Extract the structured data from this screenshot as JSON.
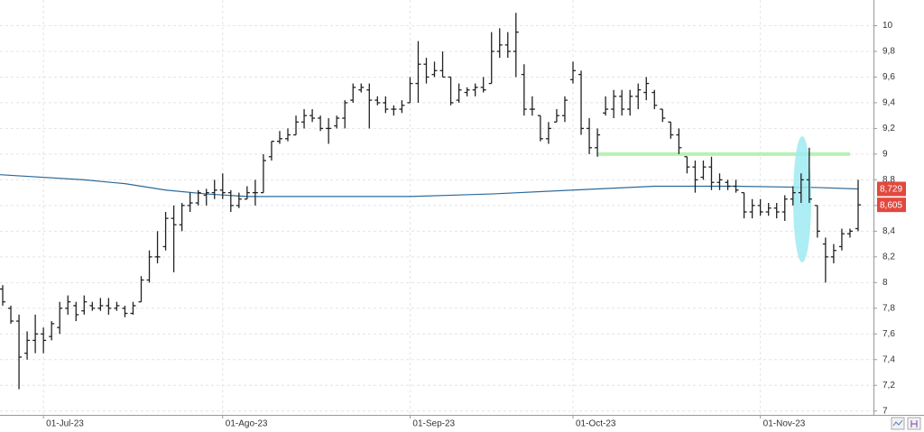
{
  "chart_data": {
    "type": "ohlc",
    "categories": [
      null,
      null,
      null,
      null,
      null,
      "01-Jul-23",
      null,
      null,
      null,
      null,
      null,
      null,
      null,
      null,
      null,
      null,
      null,
      null,
      null,
      null,
      null,
      null,
      null,
      null,
      null,
      null,
      null,
      "01-Ago-23",
      null,
      null,
      null,
      null,
      null,
      null,
      null,
      null,
      null,
      null,
      null,
      null,
      null,
      null,
      null,
      null,
      null,
      null,
      null,
      null,
      null,
      null,
      "01-Sep-23",
      null,
      null,
      null,
      null,
      null,
      null,
      null,
      null,
      null,
      null,
      null,
      null,
      null,
      null,
      null,
      null,
      null,
      null,
      null,
      "01-Oct-23",
      null,
      null,
      null,
      null,
      null,
      null,
      null,
      null,
      null,
      null,
      null,
      null,
      null,
      null,
      null,
      null,
      null,
      null,
      null,
      null,
      null,
      null,
      "01-Nov-23",
      null,
      null,
      null,
      null,
      null,
      null,
      null,
      null,
      null,
      null,
      null,
      null
    ],
    "open": [
      7.95,
      7.8,
      7.7,
      7.45,
      7.55,
      7.6,
      7.58,
      7.65,
      7.8,
      7.82,
      7.78,
      7.82,
      7.8,
      7.82,
      7.8,
      7.8,
      7.76,
      7.85,
      8.02,
      8.2,
      8.28,
      8.5,
      8.45,
      8.6,
      8.62,
      8.68,
      8.7,
      8.72,
      8.7,
      8.6,
      8.65,
      8.7,
      8.7,
      8.98,
      9.1,
      9.12,
      9.15,
      9.25,
      9.3,
      9.28,
      9.2,
      9.22,
      9.28,
      9.42,
      9.5,
      9.5,
      9.42,
      9.4,
      9.35,
      9.35,
      9.4,
      9.55,
      9.7,
      9.62,
      9.65,
      9.6,
      9.42,
      9.48,
      9.5,
      9.52,
      9.55,
      9.8,
      9.85,
      9.8,
      9.62,
      9.35,
      9.3,
      9.12,
      9.25,
      9.3,
      9.58,
      9.62,
      9.2,
      9.05,
      9.32,
      9.35,
      9.45,
      9.35,
      9.45,
      9.48,
      9.48,
      9.35,
      9.25,
      9.15,
      8.98,
      8.9,
      8.82,
      8.9,
      8.78,
      8.78,
      8.75,
      8.7,
      8.55,
      8.6,
      8.55,
      8.58,
      8.55,
      8.65,
      8.7,
      8.8,
      8.6,
      8.3,
      8.2,
      8.28,
      8.38,
      8.42
    ],
    "high": [
      7.98,
      7.82,
      7.75,
      7.62,
      7.75,
      7.65,
      7.7,
      7.85,
      7.9,
      7.85,
      7.9,
      7.85,
      7.88,
      7.88,
      7.85,
      7.82,
      7.85,
      8.05,
      8.25,
      8.4,
      8.55,
      8.6,
      8.62,
      8.7,
      8.72,
      8.73,
      8.8,
      8.85,
      8.72,
      8.7,
      8.75,
      8.8,
      9.0,
      9.1,
      9.18,
      9.2,
      9.3,
      9.35,
      9.35,
      9.3,
      9.28,
      9.3,
      9.42,
      9.55,
      9.55,
      9.55,
      9.45,
      9.45,
      9.38,
      9.42,
      9.6,
      9.88,
      9.75,
      9.72,
      9.8,
      9.6,
      9.55,
      9.52,
      9.55,
      9.6,
      9.95,
      9.98,
      9.95,
      10.1,
      9.7,
      9.45,
      9.3,
      9.25,
      9.35,
      9.45,
      9.72,
      9.65,
      9.28,
      9.2,
      9.45,
      9.5,
      9.5,
      9.5,
      9.55,
      9.6,
      9.5,
      9.35,
      9.25,
      9.2,
      8.98,
      8.95,
      8.95,
      8.98,
      8.85,
      8.8,
      8.8,
      8.7,
      8.65,
      8.65,
      8.62,
      8.62,
      8.68,
      8.75,
      8.85,
      9.05,
      8.6,
      8.35,
      8.3,
      8.42,
      8.42,
      8.8
    ],
    "low": [
      7.82,
      7.68,
      7.17,
      7.4,
      7.45,
      7.45,
      7.55,
      7.6,
      7.75,
      7.7,
      7.75,
      7.78,
      7.78,
      7.75,
      7.78,
      7.73,
      7.75,
      7.85,
      8.0,
      8.15,
      8.25,
      8.08,
      8.4,
      8.55,
      8.6,
      8.6,
      8.65,
      8.65,
      8.55,
      8.58,
      8.65,
      8.6,
      8.7,
      8.95,
      9.08,
      9.1,
      9.15,
      9.2,
      9.25,
      9.18,
      9.08,
      9.2,
      9.2,
      9.4,
      9.48,
      9.2,
      9.38,
      9.32,
      9.3,
      9.32,
      9.4,
      9.4,
      9.55,
      9.6,
      9.6,
      9.38,
      9.4,
      9.45,
      9.45,
      9.48,
      9.55,
      9.75,
      9.75,
      9.6,
      9.3,
      9.3,
      9.1,
      9.08,
      9.25,
      9.25,
      9.55,
      9.15,
      9.0,
      8.98,
      9.3,
      9.28,
      9.3,
      9.3,
      9.35,
      9.42,
      9.35,
      9.25,
      9.12,
      9.0,
      8.85,
      8.7,
      8.8,
      8.72,
      8.72,
      8.72,
      8.7,
      8.5,
      8.5,
      8.52,
      8.52,
      8.5,
      8.48,
      8.6,
      8.62,
      8.62,
      8.35,
      8.0,
      8.15,
      8.25,
      8.35,
      8.4
    ],
    "close": [
      7.85,
      7.7,
      7.42,
      7.55,
      7.6,
      7.55,
      7.68,
      7.8,
      7.85,
      7.75,
      7.85,
      7.8,
      7.82,
      7.8,
      7.82,
      7.76,
      7.82,
      8.02,
      8.2,
      8.2,
      8.5,
      8.45,
      8.6,
      8.62,
      8.7,
      8.7,
      8.72,
      8.7,
      8.6,
      8.65,
      8.7,
      8.7,
      8.95,
      9.1,
      9.12,
      9.15,
      9.25,
      9.3,
      9.28,
      9.2,
      9.2,
      9.28,
      9.4,
      9.52,
      9.52,
      9.42,
      9.4,
      9.35,
      9.35,
      9.38,
      9.55,
      9.7,
      9.6,
      9.65,
      9.6,
      9.4,
      9.5,
      9.5,
      9.52,
      9.5,
      9.8,
      9.85,
      9.8,
      9.95,
      9.35,
      9.35,
      9.12,
      9.2,
      9.3,
      9.42,
      9.65,
      9.2,
      9.05,
      9.15,
      9.35,
      9.45,
      9.35,
      9.45,
      9.5,
      9.55,
      9.38,
      9.28,
      9.15,
      9.05,
      8.9,
      8.8,
      8.9,
      8.78,
      8.8,
      8.75,
      8.72,
      8.55,
      8.6,
      8.55,
      8.58,
      8.55,
      8.65,
      8.7,
      8.8,
      8.65,
      8.4,
      8.2,
      8.25,
      8.38,
      8.4,
      8.605
    ],
    "color": "#222222",
    "moving_average": {
      "color": "#2b6a9a",
      "x": [
        0,
        10,
        15,
        20,
        25,
        30,
        40,
        50,
        60,
        70,
        80,
        90,
        100,
        105
      ],
      "values": [
        8.84,
        8.8,
        8.77,
        8.72,
        8.69,
        8.67,
        8.67,
        8.67,
        8.69,
        8.72,
        8.75,
        8.75,
        8.74,
        8.729
      ]
    },
    "hline": {
      "value": 9.0,
      "x": [
        73,
        104
      ],
      "color": "#b6f2b6"
    },
    "price_labels": [
      {
        "value": 8.729,
        "label": "8,729"
      },
      {
        "value": 8.605,
        "label": "8,605"
      }
    ],
    "price_label_color": "#e2483f",
    "ylim": [
      6.97,
      10.2
    ],
    "yticks": [
      7,
      {
        "value": 7.2,
        "label": "7,2"
      },
      {
        "value": 7.4,
        "label": "7,4"
      },
      {
        "value": 7.6,
        "label": "7,6"
      },
      {
        "value": 7.8,
        "label": "7,8"
      },
      8,
      {
        "value": 8.2,
        "label": "8,2"
      },
      {
        "value": 8.4,
        "label": "8,4"
      },
      {
        "value": 8.6,
        "label": "8,6"
      },
      {
        "value": 8.8,
        "label": "8,8"
      },
      9,
      {
        "value": 9.2,
        "label": "9,2"
      },
      {
        "value": 9.4,
        "label": "9,4"
      },
      {
        "value": 9.6,
        "label": "9,6"
      },
      {
        "value": 9.8,
        "label": "9,8"
      },
      10
    ],
    "grid": true
  }
}
